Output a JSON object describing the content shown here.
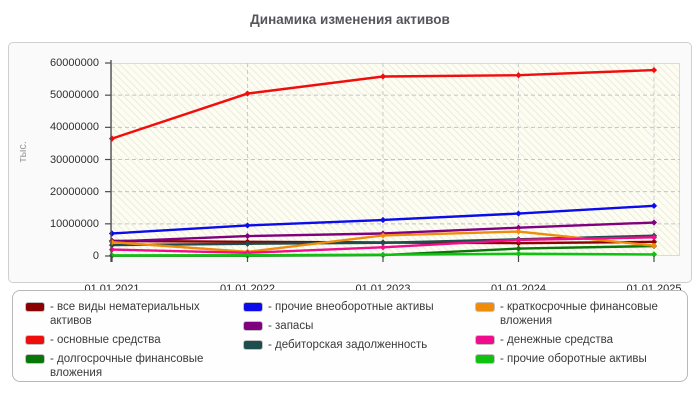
{
  "title": "Динамика изменения активов",
  "y_axis": {
    "label": "тыс.",
    "ticks": [
      "60000000",
      "50000000",
      "40000000",
      "30000000",
      "20000000",
      "10000000",
      "0"
    ]
  },
  "x_axis": {
    "ticks": [
      "01.01.2021",
      "01.01.2022",
      "01.01.2023",
      "01.01.2024",
      "01.01.2025"
    ]
  },
  "chart_data": {
    "type": "line",
    "title": "Динамика изменения активов",
    "x": [
      "01.01.2021",
      "01.01.2022",
      "01.01.2023",
      "01.01.2024",
      "01.01.2025"
    ],
    "xlabel": "",
    "ylabel": "тыс.",
    "ylim": [
      0,
      60000000
    ],
    "grid": true,
    "legend_position": "bottom",
    "series": [
      {
        "name": "все виды нематериальных активов",
        "color": "#8b0000",
        "values": [
          4700000,
          4400000,
          4200000,
          4000000,
          4400000
        ]
      },
      {
        "name": "основные средства",
        "color": "#f20d0d",
        "values": [
          36500000,
          50500000,
          55800000,
          56200000,
          57800000
        ]
      },
      {
        "name": "долгосрочные финансовые вложения",
        "color": "#077807",
        "values": [
          100000,
          100000,
          300000,
          2300000,
          3100000
        ]
      },
      {
        "name": "прочие внеоборотные активы",
        "color": "#0b0beb",
        "values": [
          7000000,
          9500000,
          11200000,
          13200000,
          15600000
        ]
      },
      {
        "name": "запасы",
        "color": "#800080",
        "values": [
          4500000,
          6200000,
          7000000,
          8800000,
          10400000
        ]
      },
      {
        "name": "дебиторская задолженность",
        "color": "#1e4d4d",
        "values": [
          3400000,
          3800000,
          4100000,
          5200000,
          6300000
        ]
      },
      {
        "name": "краткосрочные финансовые вложения",
        "color": "#f08c0c",
        "values": [
          4300000,
          1300000,
          6400000,
          7600000,
          3200000
        ]
      },
      {
        "name": "денежные средства",
        "color": "#f00c8c",
        "values": [
          2000000,
          1000000,
          2700000,
          5000000,
          5800000
        ]
      },
      {
        "name": "прочие оборотные активы",
        "color": "#10c210",
        "values": [
          200000,
          250000,
          400000,
          700000,
          500000
        ]
      }
    ]
  },
  "legend": {
    "columns": [
      [
        {
          "label": "- все виды нематериальных активов",
          "color": "#8b0000"
        },
        {
          "label": "- основные средства",
          "color": "#f20d0d"
        },
        {
          "label": "- долгосрочные финансовые вложения",
          "color": "#077807"
        }
      ],
      [
        {
          "label": "- прочие внеоборотные активы",
          "color": "#0b0beb"
        },
        {
          "label": "- запасы",
          "color": "#800080"
        },
        {
          "label": "- дебиторская задолженность",
          "color": "#1e4d4d"
        }
      ],
      [
        {
          "label": "- краткосрочные финансовые вложения",
          "color": "#f08c0c"
        },
        {
          "label": "- денежные средства",
          "color": "#f00c8c"
        },
        {
          "label": "- прочие оборотные активы",
          "color": "#10c210"
        }
      ]
    ]
  }
}
